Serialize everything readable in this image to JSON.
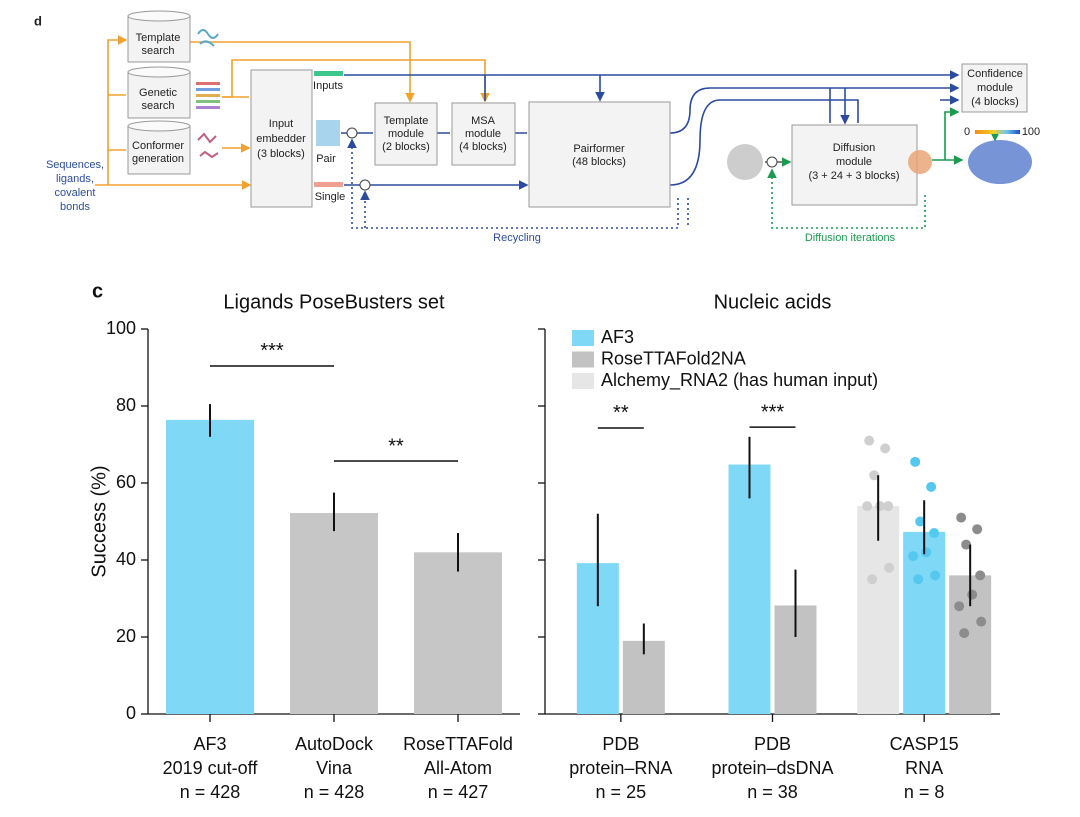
{
  "diagram": {
    "panel_label": "d",
    "inputs_label": [
      "Sequences,",
      "ligands,",
      "covalent",
      "bonds"
    ],
    "nodes": [
      {
        "label": [
          "Template",
          "search"
        ]
      },
      {
        "label": [
          "Genetic",
          "search"
        ]
      },
      {
        "label": [
          "Conformer",
          "generation"
        ]
      },
      {
        "label": [
          "Input",
          "embedder",
          "(3 blocks)"
        ]
      },
      {
        "label": [
          "Template",
          "module",
          "(2 blocks)"
        ]
      },
      {
        "label": [
          "MSA",
          "module",
          "(4 blocks)"
        ]
      },
      {
        "label": [
          "Pairformer",
          "(48 blocks)"
        ]
      },
      {
        "label": [
          "Diffusion",
          "module",
          "(3 + 24 + 3 blocks)"
        ]
      },
      {
        "label": [
          "Confidence",
          "module",
          "(4 blocks)"
        ]
      }
    ],
    "representations": [
      "Inputs",
      "Pair",
      "Single"
    ],
    "loops": [
      "Recycling",
      "Diffusion iterations"
    ],
    "confidence_scale": [
      0,
      100
    ]
  },
  "panel_label": "c",
  "chart_data": [
    {
      "type": "bar",
      "title": "Ligands PoseBusters set",
      "y_label": "Success (%)",
      "categories": [
        [
          "AF3",
          "2019 cut-off"
        ],
        [
          "AutoDock",
          "Vina"
        ],
        [
          "RoseTTAFold",
          "All-Atom"
        ]
      ],
      "sample_size_labels": [
        "n = 428",
        "n = 428",
        "n = 427"
      ],
      "values": [
        76.4,
        52.2,
        42.0
      ],
      "error_low": [
        72,
        47.5,
        37
      ],
      "error_high": [
        80.5,
        57.5,
        47
      ],
      "colors": [
        "#80d8f7",
        "#c6c6c6",
        "#c6c6c6"
      ],
      "ylim": [
        0,
        100
      ],
      "yticks": [
        0,
        20,
        40,
        60,
        80,
        100
      ],
      "annotations": [
        {
          "text": "***",
          "from": 0,
          "to": 1,
          "y": 90.4
        },
        {
          "text": "**",
          "from": 1,
          "to": 2,
          "y": 65.7
        }
      ]
    },
    {
      "type": "grouped_bar",
      "title": "Nucleic acids",
      "categories": [
        [
          "PDB",
          "protein–RNA"
        ],
        [
          "PDB",
          "protein–dsDNA"
        ],
        [
          "CASP15",
          "RNA"
        ]
      ],
      "sample_size_labels": [
        "n = 25",
        "n = 38",
        "n = 8"
      ],
      "series": [
        {
          "name": "AF3",
          "color": "#80d8f7",
          "point_color": "#55c8f0",
          "values": [
            39.2,
            64.8,
            47.3
          ],
          "error_low": [
            28,
            56,
            41.5
          ],
          "error_high": [
            52,
            72,
            55.5
          ],
          "points": [
            [],
            [],
            [
              65.5,
              59,
              50,
              47,
              42,
              41,
              36,
              35
            ]
          ]
        },
        {
          "name": "RoseTTAFold2NA",
          "color": "#c2c2c2",
          "point_color": "#8c8c8c",
          "values": [
            19,
            28.2,
            36
          ],
          "error_low": [
            15.5,
            20,
            28
          ],
          "error_high": [
            23.5,
            37.5,
            44
          ],
          "points": [
            [],
            [],
            [
              51,
              48,
              44,
              36,
              31,
              28,
              24,
              21
            ]
          ]
        },
        {
          "name": "Alchemy_RNA2 (has human input)",
          "color": "#e6e6e6",
          "point_color": "#cfcfcf",
          "values": [
            null,
            null,
            54
          ],
          "error_low": [
            null,
            null,
            45
          ],
          "error_high": [
            null,
            null,
            62
          ],
          "points": [
            [],
            [],
            [
              71,
              69,
              62,
              54,
              54,
              54,
              38,
              35
            ]
          ]
        }
      ],
      "legend": "upper left",
      "ylim": [
        0,
        100
      ],
      "yticks": [
        0,
        20,
        40,
        60,
        80,
        100
      ],
      "tick_labels": false,
      "annotations": [
        {
          "text": "**",
          "category": 0,
          "series": [
            0,
            1
          ],
          "y": 74.3
        },
        {
          "text": "***",
          "category": 1,
          "series": [
            0,
            1
          ],
          "y": 74.5
        }
      ]
    }
  ]
}
